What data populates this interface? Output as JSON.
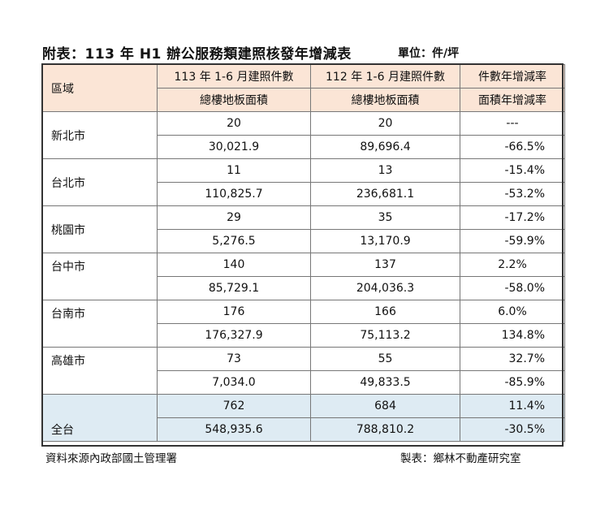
{
  "title": "附表：113 年 H1 辦公服務類建照核發年增減表",
  "unit": "單位：件/坪",
  "table": {
    "region_header": "區域",
    "col_113_count": "113 年 1-6 月建照件數",
    "col_112_count": "112 年 1-6 月建照件數",
    "col_count_yoy": "件數年增減率",
    "col_113_area": "總樓地板面積",
    "col_112_area": "總樓地板面積",
    "col_area_yoy": "面積年增減率",
    "rows": [
      {
        "region": "新北市",
        "count_113": "20",
        "count_112": "20",
        "count_yoy": "---",
        "area_113": "30,021.9",
        "area_112": "89,696.4",
        "area_yoy": "-66.5%"
      },
      {
        "region": "台北市",
        "count_113": "11",
        "count_112": "13",
        "count_yoy": "-15.4%",
        "area_113": "110,825.7",
        "area_112": "236,681.1",
        "area_yoy": "-53.2%"
      },
      {
        "region": "桃園市",
        "count_113": "29",
        "count_112": "35",
        "count_yoy": "-17.2%",
        "area_113": "5,276.5",
        "area_112": "13,170.9",
        "area_yoy": "-59.9%"
      },
      {
        "region": "台中市",
        "count_113": "140",
        "count_112": "137",
        "count_yoy": "2.2%",
        "area_113": "85,729.1",
        "area_112": "204,036.3",
        "area_yoy": "-58.0%"
      },
      {
        "region": "台南市",
        "count_113": "176",
        "count_112": "166",
        "count_yoy": "6.0%",
        "area_113": "176,327.9",
        "area_112": "75,113.2",
        "area_yoy": "134.8%"
      },
      {
        "region": "高雄市",
        "count_113": "73",
        "count_112": "55",
        "count_yoy": "32.7%",
        "area_113": "7,034.0",
        "area_112": "49,833.5",
        "area_yoy": "-85.9%"
      }
    ],
    "total": {
      "region": "全台",
      "count_113": "762",
      "count_112": "684",
      "count_yoy": "11.4%",
      "area_113": "548,935.6",
      "area_112": "788,810.2",
      "area_yoy": "-30.5%"
    }
  },
  "footer": {
    "source": "資料來源內政部國土管理署",
    "maker": "製表：鄉林不動產研究室"
  }
}
